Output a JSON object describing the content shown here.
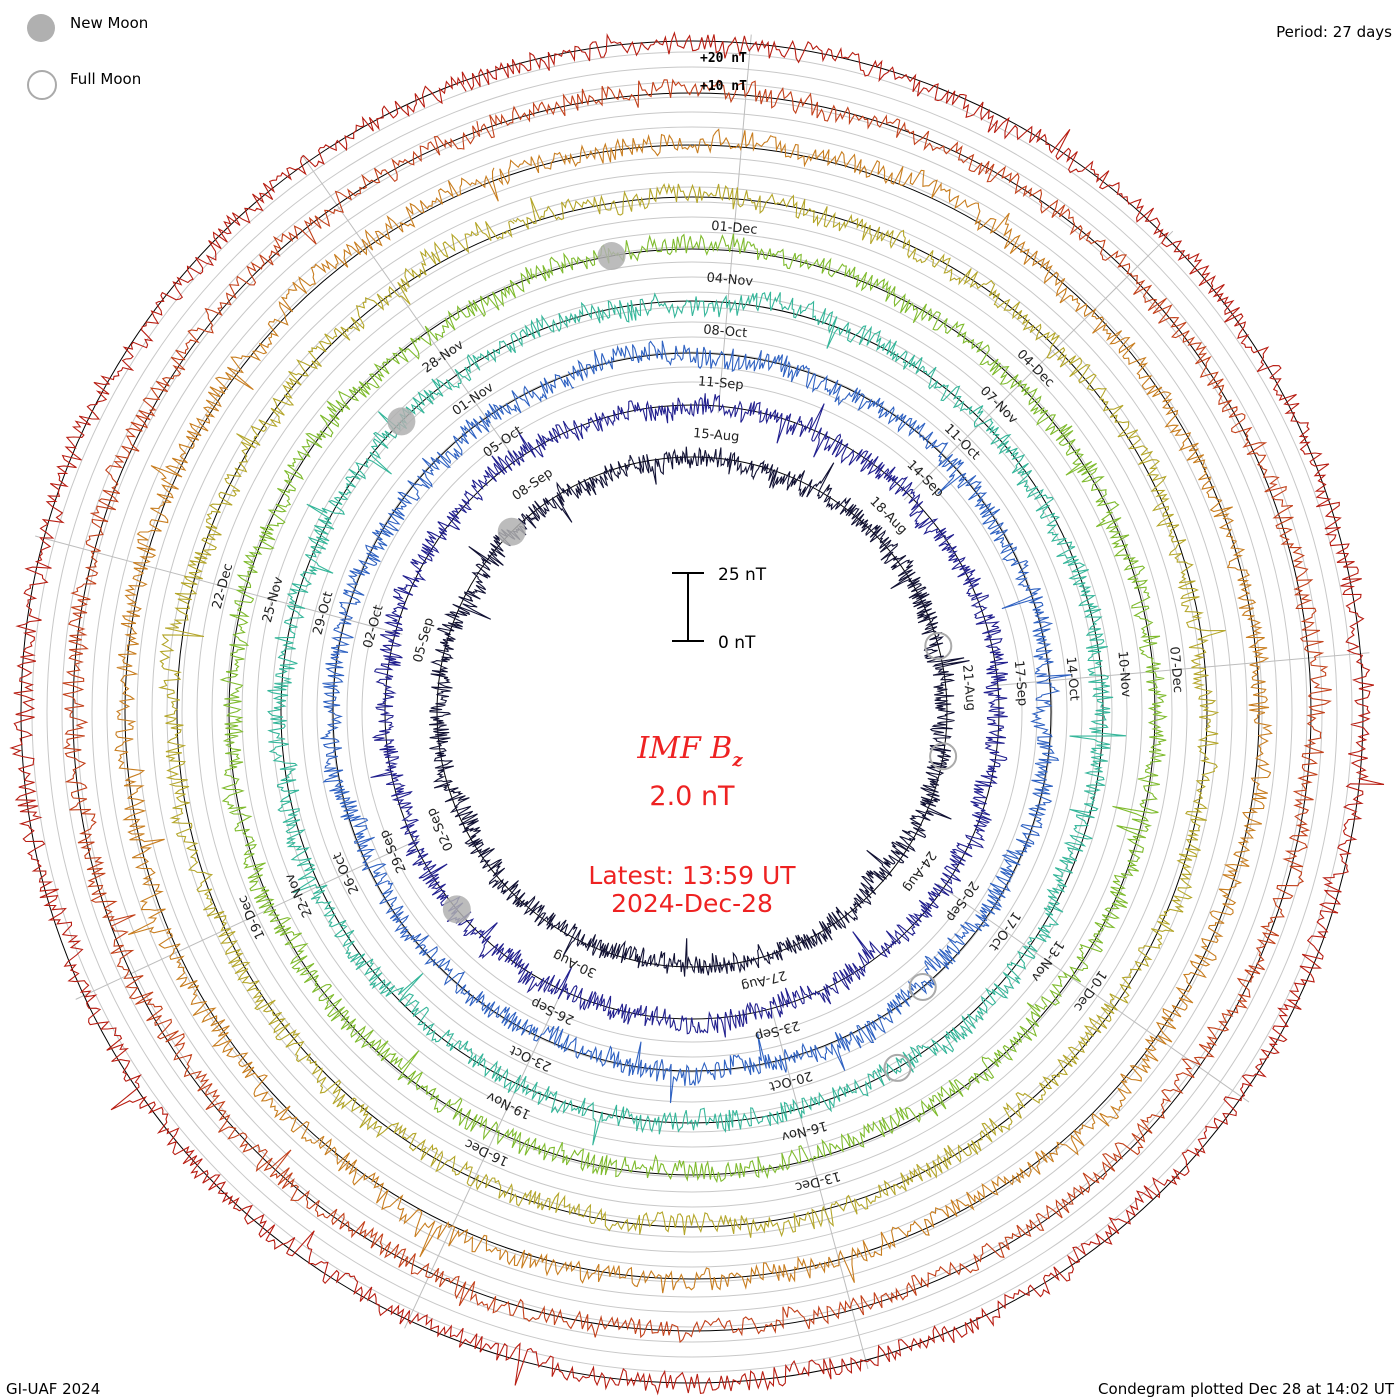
{
  "header": {
    "period": "Period: 27 days",
    "credit": "GI-UAF 2024",
    "plotted": "Condegram plotted Dec 28 at 14:02 UT"
  },
  "legend": {
    "new_moon": "New Moon",
    "full_moon": "Full Moon",
    "new_moon_color": "#b0b0b0",
    "full_moon_color": "#aaaaaa"
  },
  "scale": {
    "plus20": "+20 nT",
    "plus10": "+10 nT",
    "top": "25 nT",
    "bottom": "0 nT"
  },
  "center": {
    "title": "IMF B",
    "subscript": "z",
    "value": "2.0 nT",
    "latest": "Latest: 13:59 UT",
    "date": "2024-Dec-28",
    "color": "#ee2222"
  },
  "chart_data": {
    "type": "line",
    "title": "IMF Bz",
    "subtitle": "2.0 nT",
    "period_days": 27,
    "units": "nT",
    "start_date": "2024-Aug-15",
    "end_date": "2024-Dec-28",
    "rotations": [
      {
        "start": "15-Aug",
        "color": "#111111",
        "ticks": [
          "15-Aug",
          "18-Aug",
          "21-Aug",
          "24-Aug",
          "27-Aug",
          "30-Aug",
          "02-Sep",
          "05-Sep",
          "08-Sep"
        ]
      },
      {
        "start": "11-Sep",
        "color": "#2a1e8a",
        "ticks": [
          "11-Sep",
          "14-Sep",
          "17-Sep",
          "20-Sep",
          "23-Sep",
          "26-Sep",
          "29-Sep",
          "02-Oct",
          "05-Oct"
        ]
      },
      {
        "start": "08-Oct",
        "color": "#2f5fc0",
        "ticks": [
          "08-Oct",
          "11-Oct",
          "14-Oct",
          "17-Oct",
          "20-Oct",
          "23-Oct",
          "26-Oct",
          "29-Oct",
          "01-Nov"
        ]
      },
      {
        "start": "04-Nov",
        "color": "#33b39a",
        "ticks": [
          "04-Nov",
          "07-Nov",
          "10-Nov",
          "13-Nov",
          "16-Nov",
          "19-Nov",
          "22-Nov",
          "25-Nov",
          "28-Nov"
        ]
      },
      {
        "start": "01-Dec",
        "color": "#7dbb2c",
        "ticks": [
          "01-Dec",
          "04-Dec",
          "07-Dec",
          "10-Dec",
          "13-Dec",
          "16-Dec",
          "19-Dec",
          "22-Dec"
        ]
      }
    ],
    "inner_labels": [
      {
        "label": "15-Aug",
        "angle": 0
      },
      {
        "label": "18-Aug",
        "angle": 40
      },
      {
        "label": "21-Aug",
        "angle": 120
      },
      {
        "label": "24-Aug",
        "angle": 160
      },
      {
        "label": "27-Aug",
        "angle": 200
      },
      {
        "label": "30-Aug",
        "angle": 320
      },
      {
        "label": "02-Sep",
        "angle": 280
      },
      {
        "label": "05-Sep",
        "angle": 260
      }
    ],
    "moons": {
      "new": [
        {
          "ring": 0,
          "angle": 315
        },
        {
          "ring": 1,
          "angle": 230
        },
        {
          "ring": 3,
          "angle": -45
        },
        {
          "ring": 4,
          "angle": 350
        }
      ],
      "full": [
        {
          "ring": 0,
          "angle": 75
        },
        {
          "ring": 0,
          "angle": 100
        },
        {
          "ring": 2,
          "angle": 140
        },
        {
          "ring": 3,
          "angle": 150
        }
      ]
    },
    "latest_value": 2.0
  }
}
